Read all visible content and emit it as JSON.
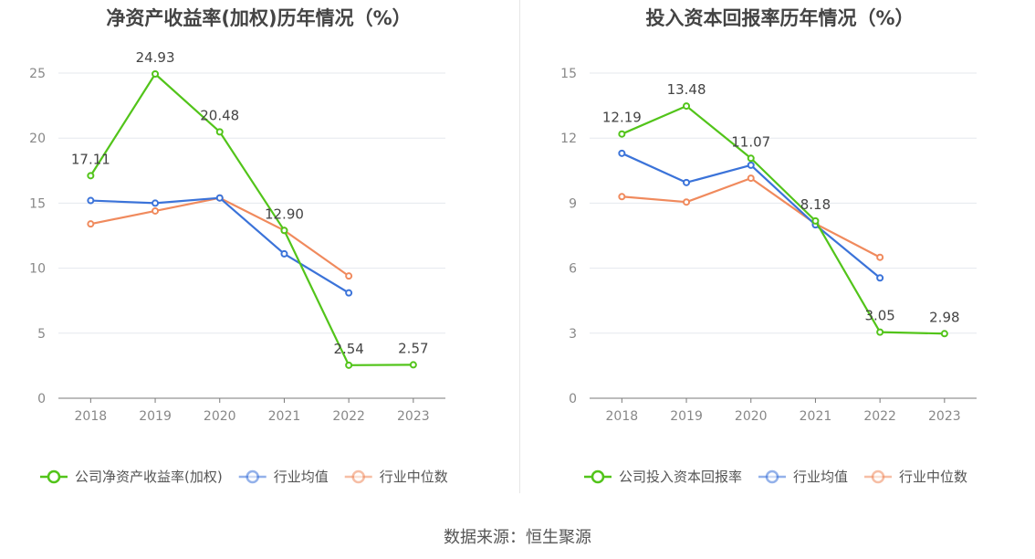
{
  "source": {
    "label": "数据来源：",
    "name": "恒生聚源"
  },
  "chart_data": [
    {
      "type": "line",
      "title": "净资产收益率(加权)历年情况（%）",
      "categories": [
        "2018",
        "2019",
        "2020",
        "2021",
        "2022",
        "2023"
      ],
      "ylim": [
        0,
        25
      ],
      "yticks": [
        0,
        5,
        10,
        15,
        20,
        25
      ],
      "grid": true,
      "legend_position": "bottom",
      "series": [
        {
          "name": "公司净资产收益率(加权)",
          "color": "#52c41a",
          "values": [
            17.11,
            24.93,
            20.48,
            12.9,
            2.54,
            2.57
          ],
          "labels": [
            "17.11",
            "24.93",
            "20.48",
            "12.90",
            "2.54",
            "2.57"
          ]
        },
        {
          "name": "行业均值",
          "color": "#3b73d9",
          "values": [
            15.2,
            15.0,
            15.4,
            11.1,
            8.1,
            null
          ]
        },
        {
          "name": "行业中位数",
          "color": "#f08a5d",
          "values": [
            13.4,
            14.4,
            15.4,
            12.9,
            9.4,
            null
          ]
        }
      ]
    },
    {
      "type": "line",
      "title": "投入资本回报率历年情况（%）",
      "categories": [
        "2018",
        "2019",
        "2020",
        "2021",
        "2022",
        "2023"
      ],
      "ylim": [
        0,
        15
      ],
      "yticks": [
        0,
        3,
        6,
        9,
        12,
        15
      ],
      "grid": true,
      "legend_position": "bottom",
      "series": [
        {
          "name": "公司投入资本回报率",
          "color": "#52c41a",
          "values": [
            12.19,
            13.48,
            11.07,
            8.18,
            3.05,
            2.98
          ],
          "labels": [
            "12.19",
            "13.48",
            "11.07",
            "8.18",
            "3.05",
            "2.98"
          ]
        },
        {
          "name": "行业均值",
          "color": "#3b73d9",
          "values": [
            11.3,
            9.95,
            10.75,
            8.0,
            5.55,
            null
          ]
        },
        {
          "name": "行业中位数",
          "color": "#f08a5d",
          "values": [
            9.3,
            9.05,
            10.15,
            8.05,
            6.5,
            null
          ]
        }
      ]
    }
  ]
}
